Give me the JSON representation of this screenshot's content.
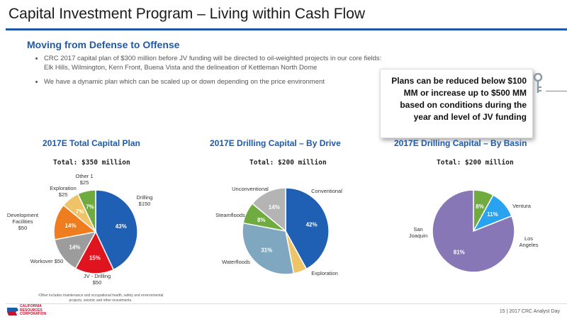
{
  "header": {
    "title": "Capital Investment Program – Living within Cash Flow",
    "subtitle": "Moving from Defense to Offense"
  },
  "bullets": [
    "CRC 2017 capital plan of $300 million before JV funding will be directed to oil-weighted projects in our core fields: Elk Hills, Wilmington, Kern Front, Buena Vista and the delineation of Kettleman North Dome",
    "We have a dynamic plan which can be scaled up or down depending on the price environment"
  ],
  "callout": {
    "text": "Plans can be reduced below $100 MM or increase up to $500 MM based on conditions during the year and level of JV funding",
    "icon": "key-icon"
  },
  "colors": {
    "title_blue": "#1e5aa8",
    "dark_blue": "#1f5fb4",
    "red": "#e0141e",
    "gray": "#9c9c9c",
    "orange": "#ee7d1f",
    "yellow": "#efc368",
    "green": "#6fab3e",
    "light_gray": "#b4b4b4",
    "teal": "#7fa7bf",
    "purple": "#8877b7",
    "sky": "#29a3ef"
  },
  "chart_data": [
    {
      "type": "pie",
      "title": "2017E Total Capital Plan",
      "total_label": "Total: $350 million",
      "slices": [
        {
          "name": "Drilling",
          "value_label": "$150",
          "pct": 43,
          "color": "#1f5fb4"
        },
        {
          "name": "JV - Drilling",
          "value_label": "$50",
          "pct": 15,
          "color": "#e0141e"
        },
        {
          "name": "Workover",
          "value_label": "$50",
          "pct": 14,
          "color": "#9c9c9c"
        },
        {
          "name": "Development Facilities",
          "value_label": "$50",
          "pct": 14,
          "color": "#ee7d1f"
        },
        {
          "name": "Exploration",
          "value_label": "$25",
          "pct": 7,
          "color": "#efc368"
        },
        {
          "name": "Other",
          "value_label": "$25",
          "superscript": "1",
          "pct": 7,
          "color": "#6fab3e"
        }
      ],
      "footnote": "¹Other includes maintenance and occupational health, safety and environmental projects, seismic and other investments."
    },
    {
      "type": "pie",
      "title": "2017E Drilling Capital – By Drive",
      "total_label": "Total: $200 million",
      "slices": [
        {
          "name": "Conventional",
          "pct": 42,
          "color": "#1f5fb4"
        },
        {
          "name": "Exploration",
          "pct": 5,
          "color": "#efc368"
        },
        {
          "name": "Waterfloods",
          "pct": 31,
          "color": "#7fa7bf"
        },
        {
          "name": "Steamfloods",
          "pct": 8,
          "color": "#6fab3e"
        },
        {
          "name": "Unconventional",
          "pct": 14,
          "color": "#b4b4b4"
        }
      ]
    },
    {
      "type": "pie",
      "title": "2017E Drilling Capital – By Basin",
      "total_label": "Total: $200 million",
      "slices": [
        {
          "name": "Ventura",
          "pct": 8,
          "color": "#6fab3e"
        },
        {
          "name": "Los Angeles",
          "pct": 11,
          "color": "#29a3ef"
        },
        {
          "name": "San Joaquin",
          "pct": 81,
          "color": "#8877b7"
        }
      ]
    }
  ],
  "footer": {
    "logo_text": "CALIFORNIA RESOURCES CORPORATION",
    "page": "15 | 2017 CRC Analyst Day"
  }
}
